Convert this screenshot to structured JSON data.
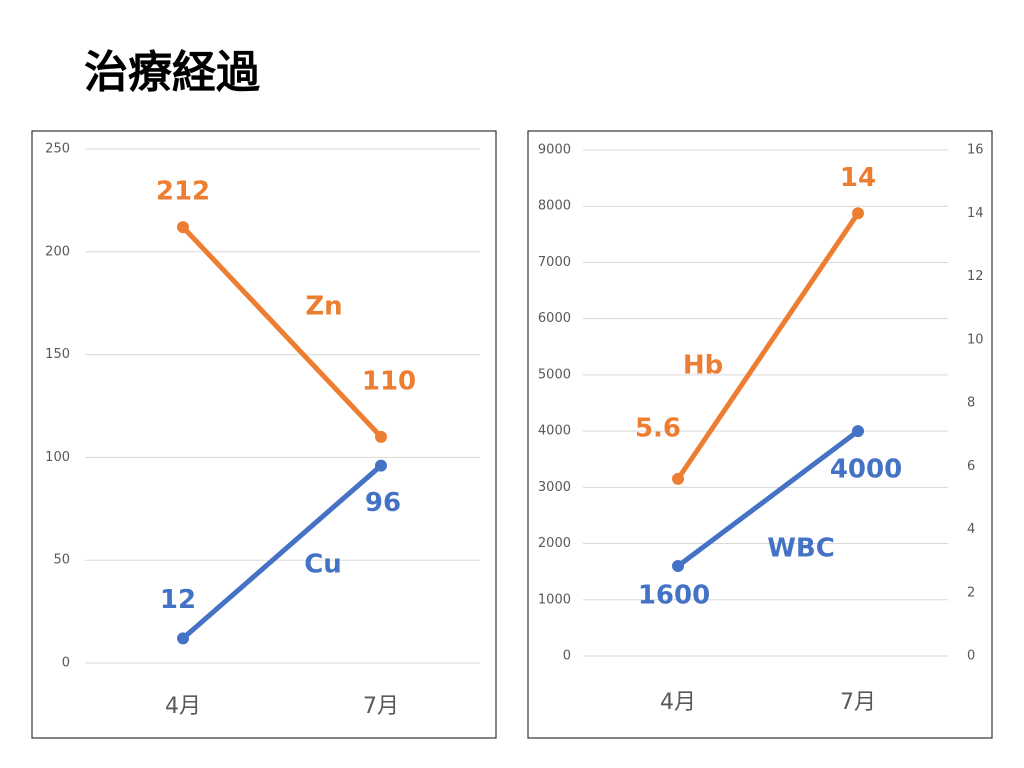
{
  "title": "治療経過",
  "chart_data": [
    {
      "type": "line",
      "categories": [
        "4月",
        "7月"
      ],
      "series": [
        {
          "name": "Zn",
          "color": "#ed7d31",
          "values": [
            212,
            110
          ]
        },
        {
          "name": "Cu",
          "color": "#4472c4",
          "values": [
            12,
            96
          ]
        }
      ],
      "ylim": [
        0,
        250
      ],
      "yticks": [
        0,
        50,
        100,
        150,
        200,
        250
      ],
      "grid": true
    },
    {
      "type": "line",
      "categories": [
        "4月",
        "7月"
      ],
      "series": [
        {
          "name": "Hb",
          "color": "#ed7d31",
          "values": [
            5.6,
            14
          ],
          "axis": "y2"
        },
        {
          "name": "WBC",
          "color": "#4472c4",
          "values": [
            1600,
            4000
          ]
        }
      ],
      "ylim": [
        0,
        9000
      ],
      "yticks": [
        0,
        1000,
        2000,
        3000,
        4000,
        5000,
        6000,
        7000,
        8000,
        9000
      ],
      "y2lim": [
        0,
        16
      ],
      "y2ticks": [
        0,
        2,
        4,
        6,
        8,
        10,
        12,
        14,
        16
      ],
      "grid": true
    }
  ]
}
